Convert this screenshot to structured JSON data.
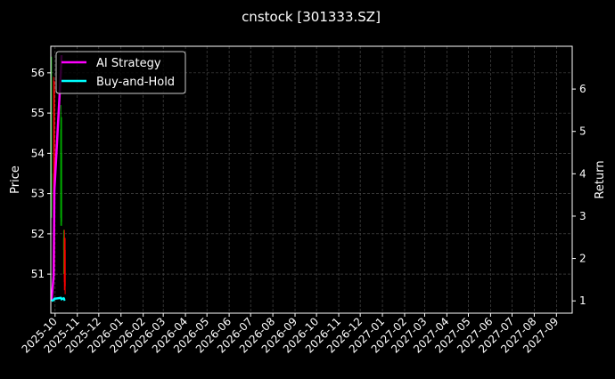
{
  "chart_data": {
    "type": "candlestick+line",
    "title": "cnstock [301333.SZ]",
    "ylabel": "Price",
    "y2label": "Return",
    "ylim": [
      50.03,
      56.66
    ],
    "y2lim": [
      0.71,
      7.01
    ],
    "xlim": [
      "2025-09-25",
      "2027-09-23"
    ],
    "yticks": [
      51,
      52,
      53,
      54,
      55,
      56
    ],
    "y2ticks": [
      1,
      2,
      3,
      4,
      5,
      6
    ],
    "xticks": [
      "2025-10",
      "2025-11",
      "2025-12",
      "2026-01",
      "2026-02",
      "2026-03",
      "2026-04",
      "2026-05",
      "2026-06",
      "2026-07",
      "2026-08",
      "2026-09",
      "2026-10",
      "2026-11",
      "2026-12",
      "2027-01",
      "2027-02",
      "2027-03",
      "2027-04",
      "2027-05",
      "2027-06",
      "2027-07",
      "2027-08",
      "2027-09"
    ],
    "grid": true,
    "legend_placement": "top-left",
    "colors": {
      "up": "#00aa00",
      "down": "#ff0000",
      "ai": "#ff00ff",
      "bh": "#00ffff"
    },
    "candles": [
      {
        "date": "2025-09-26",
        "open": 52.6,
        "high": 56.4,
        "low": 52.4,
        "close": 53.5
      },
      {
        "date": "2025-09-29",
        "open": 53.5,
        "high": 55.9,
        "low": 51.4,
        "close": 51.6
      },
      {
        "date": "2025-09-30",
        "open": 55.6,
        "high": 55.8,
        "low": 51.0,
        "close": 51.2
      },
      {
        "date": "2025-10-09",
        "open": 52.4,
        "high": 55.2,
        "low": 52.2,
        "close": 54.6
      },
      {
        "date": "2025-10-10",
        "open": 52.3,
        "high": 54.9,
        "low": 52.2,
        "close": 54.0
      },
      {
        "date": "2025-10-13",
        "open": 51.6,
        "high": 52.1,
        "low": 51.0,
        "close": 51.9
      },
      {
        "date": "2025-10-14",
        "open": 51.9,
        "high": 52.1,
        "low": 50.6,
        "close": 50.8
      },
      {
        "date": "2025-10-15",
        "open": 51.6,
        "high": 51.9,
        "low": 50.5,
        "close": 50.7
      }
    ],
    "series": [
      {
        "name": "AI Strategy",
        "dates": [
          "2025-09-26",
          "2025-09-29",
          "2025-09-30",
          "2025-10-09",
          "2025-10-10"
        ],
        "values": [
          1.0,
          1.6,
          3.6,
          6.4,
          6.8
        ]
      },
      {
        "name": "Buy-and-Hold",
        "dates": [
          "2025-09-26",
          "2025-09-29",
          "2025-09-30",
          "2025-10-09",
          "2025-10-10",
          "2025-10-13",
          "2025-10-14",
          "2025-10-15"
        ],
        "values": [
          1.0,
          1.02,
          1.05,
          1.07,
          1.04,
          1.06,
          1.03,
          1.04
        ]
      }
    ]
  }
}
